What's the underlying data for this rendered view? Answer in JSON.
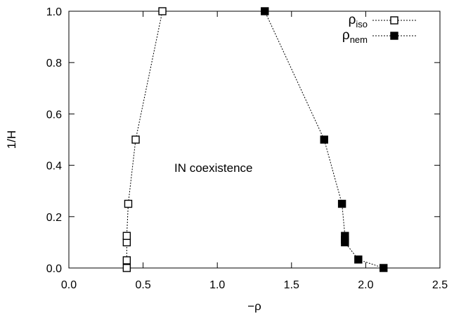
{
  "chart_data": {
    "type": "scatter",
    "xlabel": "−ρ",
    "ylabel": "1/H",
    "xlim": [
      0.0,
      2.5
    ],
    "ylim": [
      0.0,
      1.0
    ],
    "x_ticks": [
      "0.0",
      "0.5",
      "1.0",
      "1.5",
      "2.0",
      "2.5"
    ],
    "y_ticks": [
      "0.0",
      "0.2",
      "0.4",
      "0.6",
      "0.8",
      "1.0"
    ],
    "grid": false,
    "legend_position": "top-right",
    "annotation": "IN coexistence",
    "series": [
      {
        "name": "ρ",
        "name_subscript": "iso",
        "marker": "open-square",
        "line": "dotted",
        "color": "#000000",
        "points": [
          {
            "x": 0.39,
            "y": 0.0
          },
          {
            "x": 0.39,
            "y": 0.03
          },
          {
            "x": 0.39,
            "y": 0.1
          },
          {
            "x": 0.39,
            "y": 0.125
          },
          {
            "x": 0.4,
            "y": 0.25
          },
          {
            "x": 0.45,
            "y": 0.5
          },
          {
            "x": 0.63,
            "y": 1.0
          }
        ]
      },
      {
        "name": "ρ",
        "name_subscript": "nem",
        "marker": "filled-square",
        "line": "dotted",
        "color": "#000000",
        "points": [
          {
            "x": 2.12,
            "y": 0.0
          },
          {
            "x": 1.95,
            "y": 0.033
          },
          {
            "x": 1.86,
            "y": 0.1
          },
          {
            "x": 1.86,
            "y": 0.11
          },
          {
            "x": 1.86,
            "y": 0.125
          },
          {
            "x": 1.84,
            "y": 0.25
          },
          {
            "x": 1.72,
            "y": 0.5
          },
          {
            "x": 1.32,
            "y": 1.0
          }
        ]
      }
    ]
  }
}
